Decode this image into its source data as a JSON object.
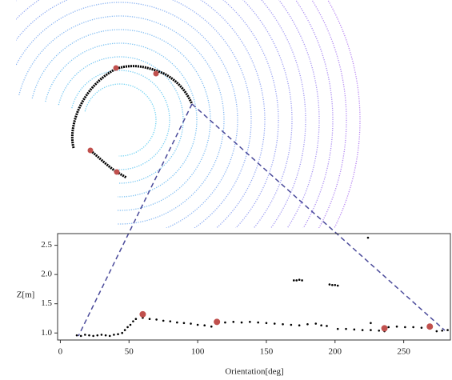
{
  "chart_data": {
    "type": "scatter",
    "x_label": "Orientation[deg]",
    "y_label": "Z[m]",
    "xlim": [
      -2,
      284
    ],
    "ylim": [
      0.88,
      2.7
    ],
    "xticks": [
      0,
      50,
      100,
      150,
      200,
      250
    ],
    "yticks": [
      {
        "value": 1,
        "label": "1.0"
      },
      1.5,
      {
        "value": 2,
        "label": "2.0"
      },
      2.5
    ],
    "series": [
      {
        "color": "#000000",
        "marker_size": 1.3,
        "x": [
          12,
          15,
          18,
          21,
          24,
          27,
          30,
          33,
          36,
          39,
          42,
          45,
          47,
          49,
          51,
          53,
          55,
          60,
          65,
          70,
          75,
          80,
          85,
          90,
          95,
          100,
          105,
          110,
          114,
          120,
          126,
          132,
          138,
          144,
          150,
          156,
          162,
          168,
          174,
          180,
          186,
          190,
          194,
          202,
          208,
          214,
          220,
          226,
          232,
          236,
          239,
          245,
          251,
          257,
          263,
          269,
          274,
          278,
          282,
          170,
          172,
          174,
          176,
          196,
          198,
          200,
          202,
          224,
          226
        ],
        "values": [
          0.96,
          0.95,
          0.97,
          0.96,
          0.95,
          0.96,
          0.97,
          0.96,
          0.95,
          0.97,
          0.98,
          1.0,
          1.05,
          1.1,
          1.14,
          1.2,
          1.24,
          1.26,
          1.24,
          1.23,
          1.21,
          1.2,
          1.18,
          1.17,
          1.16,
          1.14,
          1.13,
          1.11,
          1.17,
          1.18,
          1.19,
          1.18,
          1.19,
          1.18,
          1.17,
          1.16,
          1.15,
          1.14,
          1.13,
          1.15,
          1.16,
          1.13,
          1.12,
          1.07,
          1.07,
          1.06,
          1.05,
          1.05,
          1.04,
          1.03,
          1.1,
          1.11,
          1.1,
          1.1,
          1.09,
          1.08,
          1.03,
          1.04,
          1.05,
          1.9,
          1.9,
          1.91,
          1.9,
          1.83,
          1.82,
          1.82,
          1.81,
          2.63,
          1.17
        ]
      },
      {
        "color": "#c0504d",
        "marker_size": 4,
        "x": [
          60,
          114,
          236,
          269
        ],
        "values": [
          1.32,
          1.19,
          1.08,
          1.11
        ]
      }
    ]
  }
}
